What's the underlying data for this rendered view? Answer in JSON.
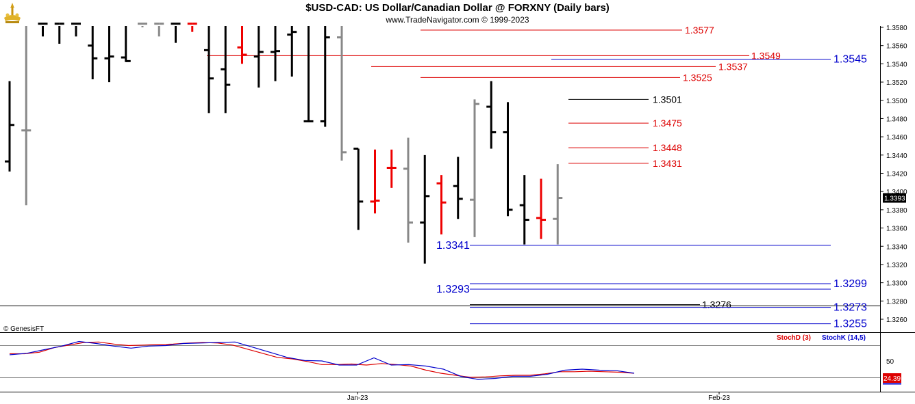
{
  "header": {
    "title": "$USD-CAD:  US Dollar/Canadian Dollar @ FORXNY  (Daily bars)",
    "subtitle": "www.TradeNavigator.com © 1999-2023",
    "logo_icon": "gold-logo-icon"
  },
  "watermark": "© GenesisFT",
  "colors": {
    "up_bar": "#000000",
    "down_bar": "#ee0000",
    "neutral_bar": "#888888",
    "support_line": "#0000cc",
    "resistance_line": "#dd0000",
    "last_price_bg": "#000000",
    "stoch_d": "#dd0000",
    "stoch_k": "#0000cc"
  },
  "chart_data": [
    {
      "type": "bar",
      "subtype": "ohlc",
      "title": "$USD-CAD:  US Dollar/Canadian Dollar @ FORXNY  (Daily bars)",
      "ylim": [
        1.3246,
        1.3584
      ],
      "y_ticks": [
        "1.3580",
        "1.3560",
        "1.3540",
        "1.3520",
        "1.3500",
        "1.3480",
        "1.3460",
        "1.3440",
        "1.3420",
        "1.3400",
        "1.3380",
        "1.3360",
        "1.3340",
        "1.3320",
        "1.3300",
        "1.3280",
        "1.3260"
      ],
      "x_ticks": [
        "Jan-23",
        "Feb-23"
      ],
      "last_price": "1.3393",
      "bars": [
        {
          "h": 1.3521,
          "l": 1.3422,
          "o": 1.3433,
          "c": 1.3473,
          "color": "black"
        },
        {
          "h": 1.3584,
          "l": 1.3385,
          "o": 1.3467,
          "c": 1.3467,
          "color": "gray"
        },
        {
          "h": 1.3584,
          "l": 1.357,
          "o": 1.3584,
          "c": 1.3584,
          "color": "black"
        },
        {
          "h": 1.3584,
          "l": 1.3562,
          "o": 1.3584,
          "c": 1.3584,
          "color": "black"
        },
        {
          "h": 1.3584,
          "l": 1.357,
          "o": 1.3584,
          "c": 1.3584,
          "color": "black"
        },
        {
          "h": 1.3584,
          "l": 1.3523,
          "o": 1.356,
          "c": 1.3546,
          "color": "black"
        },
        {
          "h": 1.3584,
          "l": 1.352,
          "o": 1.3546,
          "c": 1.3548,
          "color": "black"
        },
        {
          "h": 1.3584,
          "l": 1.3542,
          "o": 1.3547,
          "c": 1.3543,
          "color": "black"
        },
        {
          "h": 1.3584,
          "l": 1.358,
          "o": 1.3584,
          "c": 1.3584,
          "color": "gray"
        },
        {
          "h": 1.3584,
          "l": 1.357,
          "o": 1.3584,
          "c": 1.3584,
          "color": "gray"
        },
        {
          "h": 1.3584,
          "l": 1.3563,
          "o": 1.3584,
          "c": 1.3584,
          "color": "black"
        },
        {
          "h": 1.3584,
          "l": 1.3575,
          "o": 1.3584,
          "c": 1.3584,
          "color": "red"
        },
        {
          "h": 1.3584,
          "l": 1.3486,
          "o": 1.3555,
          "c": 1.3524,
          "color": "black"
        },
        {
          "h": 1.3584,
          "l": 1.3486,
          "o": 1.3534,
          "c": 1.3517,
          "color": "black"
        },
        {
          "h": 1.3584,
          "l": 1.354,
          "o": 1.3558,
          "c": 1.355,
          "color": "red"
        },
        {
          "h": 1.3584,
          "l": 1.3514,
          "o": 1.3548,
          "c": 1.3553,
          "color": "black"
        },
        {
          "h": 1.3584,
          "l": 1.3521,
          "o": 1.3553,
          "c": 1.3554,
          "color": "black"
        },
        {
          "h": 1.3584,
          "l": 1.3526,
          "o": 1.3572,
          "c": 1.3575,
          "color": "black"
        },
        {
          "h": 1.3584,
          "l": 1.3476,
          "o": 1.3477,
          "c": 1.3477,
          "color": "black"
        },
        {
          "h": 1.3584,
          "l": 1.3471,
          "o": 1.3477,
          "c": 1.3569,
          "color": "black"
        },
        {
          "h": 1.3584,
          "l": 1.3434,
          "o": 1.3569,
          "c": 1.3443,
          "color": "gray"
        },
        {
          "h": 1.3447,
          "l": 1.3358,
          "o": 1.3447,
          "c": 1.3389,
          "color": "black"
        },
        {
          "h": 1.3446,
          "l": 1.3376,
          "o": 1.3389,
          "c": 1.339,
          "color": "red"
        },
        {
          "h": 1.3446,
          "l": 1.3404,
          "o": 1.3426,
          "c": 1.3426,
          "color": "red"
        },
        {
          "h": 1.3459,
          "l": 1.3344,
          "o": 1.3425,
          "c": 1.3366,
          "color": "gray"
        },
        {
          "h": 1.344,
          "l": 1.3321,
          "o": 1.3366,
          "c": 1.3395,
          "color": "black"
        },
        {
          "h": 1.3418,
          "l": 1.3353,
          "o": 1.3409,
          "c": 1.3388,
          "color": "red"
        },
        {
          "h": 1.3438,
          "l": 1.337,
          "o": 1.3406,
          "c": 1.3392,
          "color": "black"
        },
        {
          "h": 1.3501,
          "l": 1.335,
          "o": 1.3391,
          "c": 1.3496,
          "color": "gray"
        },
        {
          "h": 1.3521,
          "l": 1.3447,
          "o": 1.3493,
          "c": 1.3465,
          "color": "black"
        },
        {
          "h": 1.3498,
          "l": 1.3373,
          "o": 1.3465,
          "c": 1.338,
          "color": "black"
        },
        {
          "h": 1.3418,
          "l": 1.3342,
          "o": 1.3385,
          "c": 1.3369,
          "color": "black"
        },
        {
          "h": 1.3414,
          "l": 1.3348,
          "o": 1.3371,
          "c": 1.3369,
          "color": "red"
        },
        {
          "h": 1.343,
          "l": 1.3342,
          "o": 1.337,
          "c": 1.3393,
          "color": "gray"
        }
      ],
      "levels": [
        {
          "value": 1.3577,
          "label": "1.3577",
          "color": "red"
        },
        {
          "value": 1.3549,
          "label": "1.3549",
          "color": "red"
        },
        {
          "value": 1.3545,
          "label": "1.3545",
          "color": "blue"
        },
        {
          "value": 1.3537,
          "label": "1.3537",
          "color": "red"
        },
        {
          "value": 1.3525,
          "label": "1.3525",
          "color": "red"
        },
        {
          "value": 1.3501,
          "label": "1.3501",
          "color": "black"
        },
        {
          "value": 1.3475,
          "label": "1.3475",
          "color": "red"
        },
        {
          "value": 1.3448,
          "label": "1.3448",
          "color": "red"
        },
        {
          "value": 1.3431,
          "label": "1.3431",
          "color": "red"
        },
        {
          "value": 1.3341,
          "label": "1.3341",
          "color": "blue"
        },
        {
          "value": 1.3299,
          "label": "1.3299",
          "color": "blue"
        },
        {
          "value": 1.3293,
          "label": "1.3293",
          "color": "blue"
        },
        {
          "value": 1.3276,
          "label": "1.3276",
          "color": "black"
        },
        {
          "value": 1.3273,
          "label": "1.3273",
          "color": "blue"
        },
        {
          "value": 1.3255,
          "label": "1.3255",
          "color": "blue"
        }
      ]
    },
    {
      "type": "line",
      "title": "",
      "ylim": [
        0,
        100
      ],
      "y_ticks": [
        "50"
      ],
      "last_value": "24.39",
      "series": [
        {
          "name": "StochD (3)",
          "color": "#dd0000",
          "values": [
            62,
            62,
            65,
            74,
            79,
            84,
            85,
            81,
            78,
            79,
            80,
            81,
            83,
            84,
            83,
            79,
            71,
            63,
            55,
            52,
            47,
            41,
            41,
            42,
            40,
            43,
            41,
            38,
            30,
            24,
            20,
            16,
            17,
            19,
            20,
            20,
            23,
            27,
            27,
            28,
            27,
            26,
            24
          ]
        },
        {
          "name": "StochK (14,5)",
          "color": "#0000cc",
          "values": [
            60,
            63,
            70,
            77,
            86,
            82,
            77,
            73,
            77,
            78,
            82,
            83,
            84,
            85,
            75,
            65,
            55,
            49,
            48,
            40,
            40,
            54,
            40,
            41,
            38,
            32,
            18,
            12,
            14,
            18,
            18,
            22,
            30,
            32,
            30,
            29,
            24
          ]
        }
      ]
    }
  ]
}
